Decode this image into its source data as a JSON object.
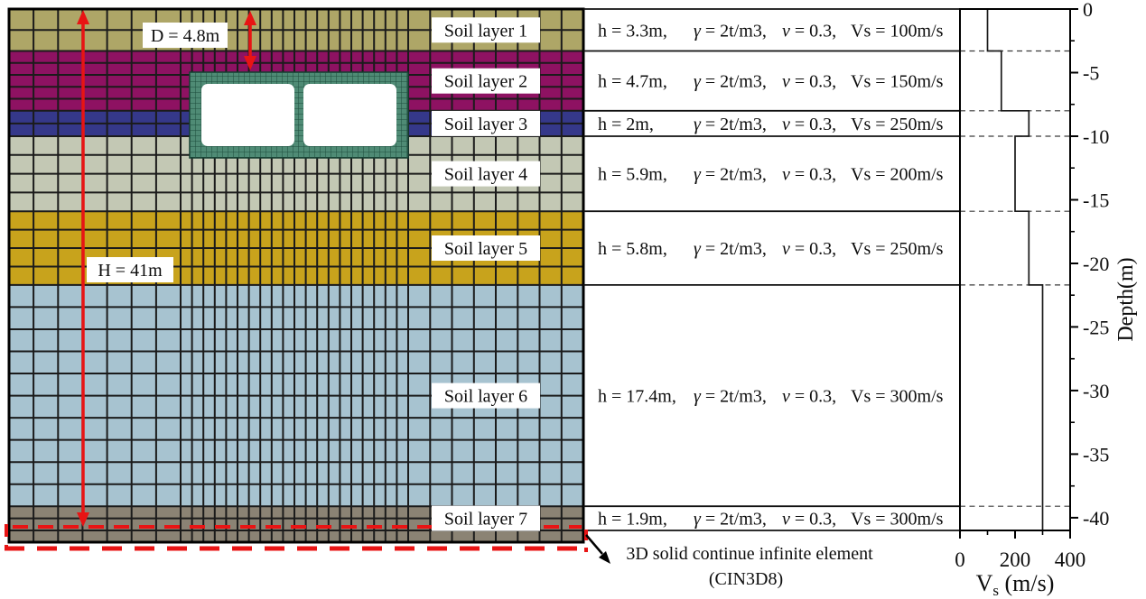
{
  "figure": {
    "type": "soil-profile-finite-element-figure",
    "annotations": {
      "d_label": "D = 4.8m",
      "h_label": "H = 41m",
      "infinite_element_note": [
        "3D solid continue infinite element",
        "(CIN3D8)"
      ]
    },
    "colors": {
      "grid_line": "#1b1b1b",
      "tunnel_fill": "#4f8b75",
      "tunnel_grid": "#1e4d3d",
      "annotation_red": "#e81414",
      "label_box_bg": "#ffffff",
      "line_black": "#111111"
    }
  },
  "layers": [
    {
      "label": "Soil layer 1",
      "color": "#aea667",
      "thickness_m": 3.3,
      "vs_mps": 100,
      "h": "h = 3.3m,",
      "gamma": "γ = 2t/m3,",
      "nu": "ν = 0.3,",
      "vs": "Vs = 100m/s"
    },
    {
      "label": "Soil layer 2",
      "color": "#8e1262",
      "thickness_m": 4.7,
      "vs_mps": 150,
      "h": "h = 4.7m,",
      "gamma": "γ = 2t/m3,",
      "nu": "ν = 0.3,",
      "vs": "Vs = 150m/s"
    },
    {
      "label": "Soil layer 3",
      "color": "#35388a",
      "thickness_m": 2.0,
      "vs_mps": 250,
      "h": "h = 2m,",
      "gamma": "γ = 2t/m3,",
      "nu": "ν = 0.3,",
      "vs": "Vs = 250m/s"
    },
    {
      "label": "Soil layer 4",
      "color": "#c3c8b4",
      "thickness_m": 5.9,
      "vs_mps": 200,
      "h": "h = 5.9m,",
      "gamma": "γ = 2t/m3,",
      "nu": "ν = 0.3,",
      "vs": "Vs = 200m/s"
    },
    {
      "label": "Soil layer 5",
      "color": "#c8a31c",
      "thickness_m": 5.8,
      "vs_mps": 250,
      "h": "h = 5.8m,",
      "gamma": "γ = 2t/m3,",
      "nu": "ν = 0.3,",
      "vs": "Vs = 250m/s"
    },
    {
      "label": "Soil layer 6",
      "color": "#a7c3d0",
      "thickness_m": 17.4,
      "vs_mps": 300,
      "h": "h = 17.4m,",
      "gamma": "γ = 2t/m3,",
      "nu": "ν = 0.3,",
      "vs": "Vs = 300m/s"
    },
    {
      "label": "Soil layer 7",
      "color": "#8b8374",
      "thickness_m": 1.9,
      "vs_mps": 300,
      "h": "h = 1.9m,",
      "gamma": "γ = 2t/m3,",
      "nu": "ν = 0.3,",
      "vs": "Vs = 300m/s"
    }
  ],
  "chart_data": {
    "type": "line",
    "title": "",
    "xlabel": "Vs (m/s)",
    "xlabel_parts": {
      "main": "V",
      "sub": "s",
      "rest": " (m/s)"
    },
    "ylabel": "Depth(m)",
    "xlim": [
      0,
      400
    ],
    "ylim": [
      -41,
      0
    ],
    "xticks_major": [
      0,
      200,
      400
    ],
    "xticks_minor": [
      100,
      300
    ],
    "yticks_major": [
      0,
      -5,
      -10,
      -15,
      -20,
      -25,
      -30,
      -35,
      -40
    ],
    "ytick_minor_step_m": 2.5,
    "legend": "none",
    "grid": "dashed horizontal lines at layer boundaries",
    "layer_boundaries_m": [
      -3.3,
      -8,
      -10,
      -15.9,
      -21.7,
      -39.1
    ],
    "series": [
      {
        "name": "Shear wave velocity profile",
        "x": [
          100,
          100,
          150,
          150,
          250,
          250,
          200,
          200,
          250,
          250,
          300,
          300
        ],
        "y": [
          0,
          -3.3,
          -3.3,
          -8,
          -8,
          -10,
          -10,
          -15.9,
          -15.9,
          -21.7,
          -21.7,
          -41
        ]
      }
    ]
  }
}
